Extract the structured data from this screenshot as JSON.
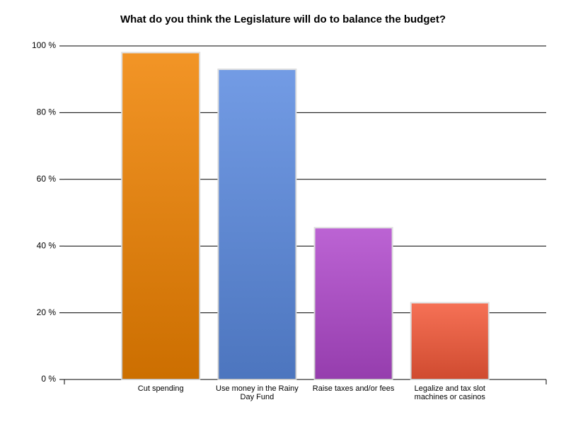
{
  "chart_data": {
    "type": "bar",
    "title": "What do you think the Legislature will do to balance the budget?",
    "categories": [
      "Cut spending",
      "Use money in the Rainy Day Fund",
      "Raise taxes and/or fees",
      "Legalize and tax slot machines or casinos"
    ],
    "values": [
      98,
      93,
      45.5,
      23
    ],
    "colors": [
      "#f08200",
      "#5a8ae0",
      "#b048cc",
      "#f45838"
    ],
    "ylim": [
      0,
      100
    ],
    "yticks": [
      {
        "value": 0,
        "label": "0 %"
      },
      {
        "value": 20,
        "label": "20 %"
      },
      {
        "value": 40,
        "label": "40 %"
      },
      {
        "value": 60,
        "label": "60 %"
      },
      {
        "value": 80,
        "label": "80 %"
      },
      {
        "value": 100,
        "label": "100 %"
      }
    ],
    "grid": true
  }
}
